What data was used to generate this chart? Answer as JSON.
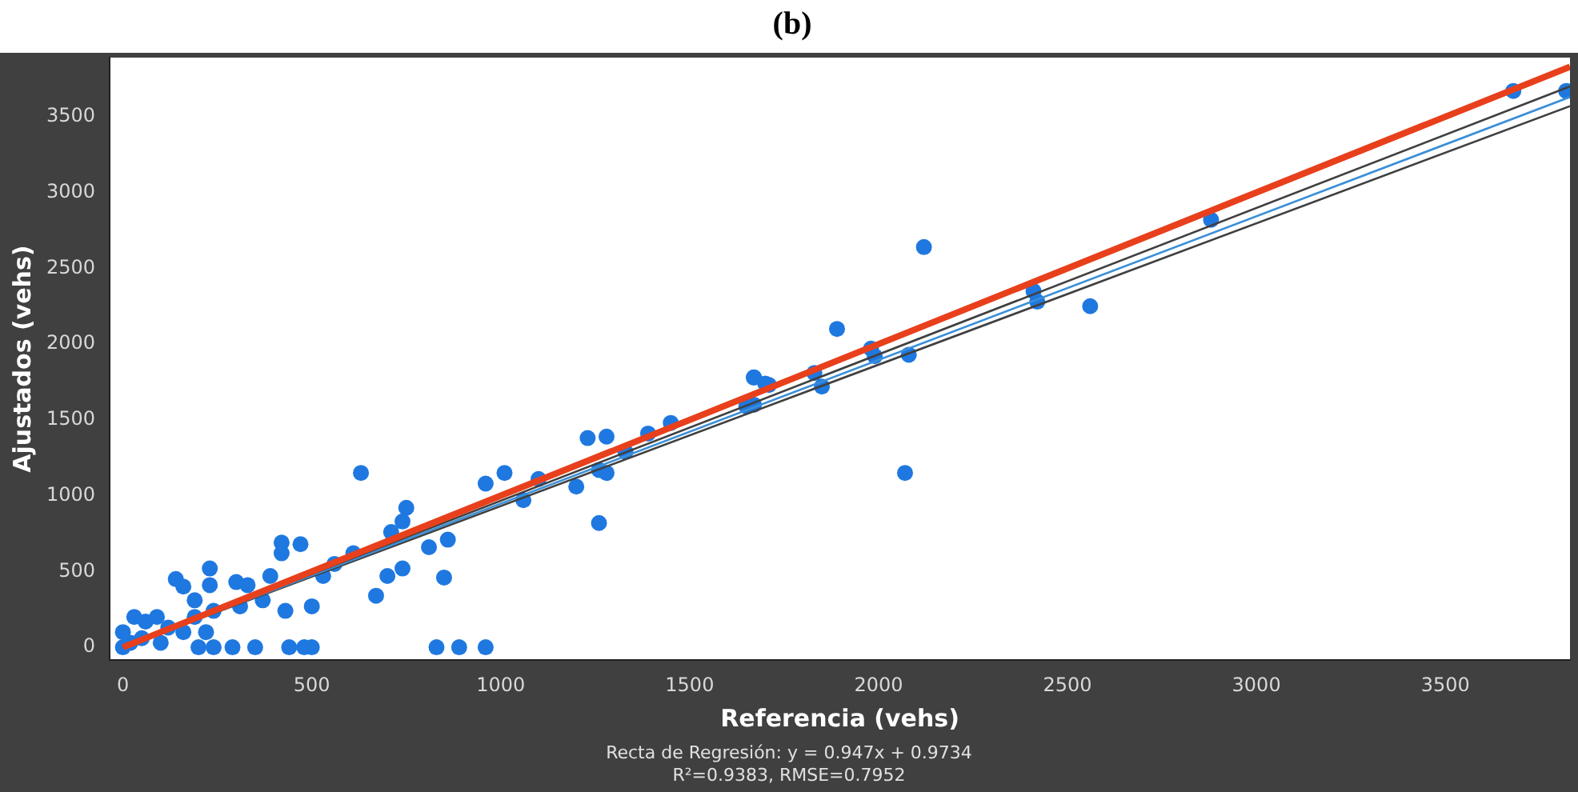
{
  "chart_data": {
    "type": "scatter",
    "title": "(b)",
    "xlabel": "Referencia (vehs)",
    "ylabel": "Ajustados (vehs)",
    "annotations": [
      "Recta de Regresión:  y = 0.947x + 0.9734",
      "R²=0.9383, RMSE=0.7952"
    ],
    "xlim": [
      -35,
      3830
    ],
    "ylim": [
      -85,
      3890
    ],
    "xticks": [
      0,
      500,
      1000,
      1500,
      2000,
      2500,
      3000,
      3500
    ],
    "yticks": [
      0,
      500,
      1000,
      1500,
      2000,
      2500,
      3000,
      3500
    ],
    "grid": false,
    "legend": false,
    "series": [
      {
        "color": "#1f78e0",
        "marker": "circle",
        "x": [
          630,
          1260,
          830,
          890,
          960,
          850,
          440,
          480,
          500,
          350,
          290,
          300,
          140,
          160,
          230,
          230,
          420,
          470,
          420,
          670,
          740,
          700,
          810,
          860,
          960,
          1010,
          1060,
          1100,
          1200,
          1230,
          1280,
          1260,
          1280,
          1330,
          1390,
          1450,
          1650,
          1670,
          1700,
          750,
          740,
          710,
          610,
          560,
          530,
          500,
          370,
          310,
          430,
          20,
          30,
          60,
          90,
          120,
          160,
          190,
          220,
          190,
          240,
          50,
          0,
          100,
          200,
          240,
          0,
          330,
          390,
          2120,
          2070,
          1890,
          1980,
          1990,
          2080,
          1830,
          1850,
          1670,
          1710,
          1670,
          2410,
          2420,
          2560,
          2880,
          3680,
          3820
        ],
        "values": [
          1150,
          820,
          0,
          0,
          0,
          460,
          0,
          0,
          0,
          0,
          0,
          430,
          450,
          400,
          520,
          410,
          690,
          680,
          620,
          340,
          520,
          470,
          660,
          710,
          1080,
          1150,
          970,
          1110,
          1060,
          1380,
          1390,
          1170,
          1150,
          1290,
          1410,
          1480,
          1590,
          1780,
          1740,
          920,
          830,
          760,
          620,
          550,
          470,
          270,
          310,
          270,
          240,
          30,
          200,
          170,
          200,
          130,
          100,
          200,
          100,
          310,
          240,
          60,
          100,
          30,
          0,
          0,
          0,
          410,
          470,
          2640,
          1150,
          2100,
          1970,
          1920,
          1930,
          1810,
          1720,
          1780,
          1730,
          1600,
          2350,
          2280,
          2250,
          2820,
          3670,
          3670
        ]
      },
      {
        "type": "line",
        "color": "#e8401c",
        "marker": "none",
        "x": [
          0,
          3830
        ],
        "values": [
          0,
          3830
        ]
      },
      {
        "type": "line",
        "color": "#404040",
        "marker": "none",
        "x": [
          0,
          3830
        ],
        "values": [
          0,
          3700
        ]
      },
      {
        "type": "line",
        "color": "#3a8fd8",
        "marker": "none",
        "x": [
          0,
          3830
        ],
        "values": [
          0,
          3630
        ]
      },
      {
        "type": "line",
        "color": "#404040",
        "marker": "none",
        "x": [
          0,
          3830
        ],
        "values": [
          0,
          3570
        ]
      }
    ]
  }
}
